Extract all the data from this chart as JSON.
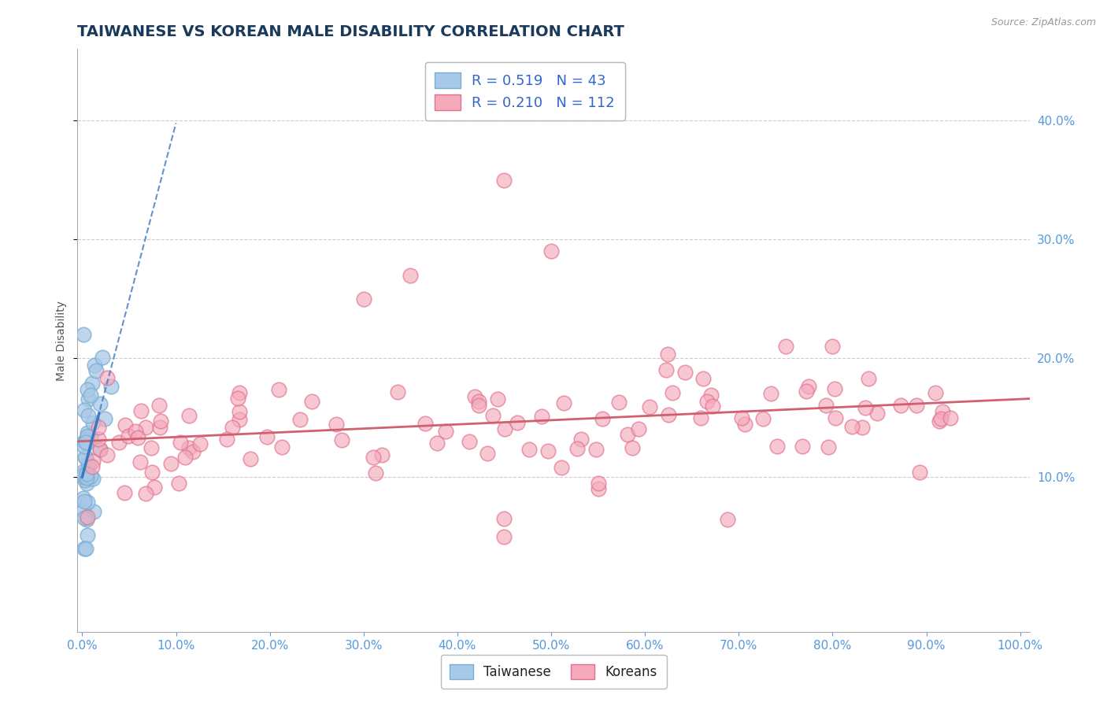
{
  "title": "TAIWANESE VS KOREAN MALE DISABILITY CORRELATION CHART",
  "source": "Source: ZipAtlas.com",
  "ylabel": "Male Disability",
  "xlim": [
    -0.005,
    1.01
  ],
  "ylim": [
    -0.03,
    0.46
  ],
  "taiwan_R": 0.519,
  "taiwan_N": 43,
  "korean_R": 0.21,
  "korean_N": 112,
  "taiwan_color": "#A8C8E8",
  "taiwan_edge_color": "#7AAED4",
  "korean_color": "#F4AABB",
  "korean_edge_color": "#E07090",
  "taiwan_line_color": "#3A7ABF",
  "korean_line_color": "#D06070",
  "legend_text_color": "#3366CC",
  "grid_color": "#CCCCCC",
  "background_color": "#FFFFFF",
  "title_color": "#1A3A5C",
  "source_color": "#999999",
  "right_tick_color": "#5599DD",
  "bottom_tick_color": "#5599DD"
}
